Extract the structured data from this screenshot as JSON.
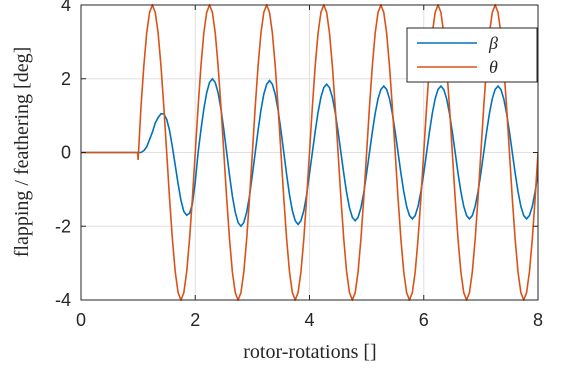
{
  "chart_data": {
    "type": "line",
    "xlabel": "rotor-rotations []",
    "ylabel": "flapping / feathering [deg]",
    "xlim": [
      0,
      8
    ],
    "ylim": [
      -4,
      4
    ],
    "xticks": [
      0,
      2,
      4,
      6,
      8
    ],
    "yticks": [
      -4,
      -2,
      0,
      2,
      4
    ],
    "grid": true,
    "legend": "upper right",
    "x": [
      0,
      0.99,
      1,
      1.05,
      1.1,
      1.15,
      1.2,
      1.25,
      1.3,
      1.35,
      1.4,
      1.45,
      1.5,
      1.55,
      1.6,
      1.65,
      1.7,
      1.75,
      1.8,
      1.85,
      1.9,
      1.95,
      2,
      2.05,
      2.1,
      2.15,
      2.2,
      2.25,
      2.3,
      2.35,
      2.4,
      2.45,
      2.5,
      2.55,
      2.6,
      2.65,
      2.7,
      2.75,
      2.8,
      2.85,
      2.9,
      2.95,
      3,
      3.05,
      3.1,
      3.15,
      3.2,
      3.25,
      3.3,
      3.35,
      3.4,
      3.45,
      3.5,
      3.55,
      3.6,
      3.65,
      3.7,
      3.75,
      3.8,
      3.85,
      3.9,
      3.95,
      4,
      4.05,
      4.1,
      4.15,
      4.2,
      4.25,
      4.3,
      4.35,
      4.4,
      4.45,
      4.5,
      4.55,
      4.6,
      4.65,
      4.7,
      4.75,
      4.8,
      4.85,
      4.9,
      4.95,
      5,
      5.05,
      5.1,
      5.15,
      5.2,
      5.25,
      5.3,
      5.35,
      5.4,
      5.45,
      5.5,
      5.55,
      5.6,
      5.65,
      5.7,
      5.75,
      5.8,
      5.85,
      5.9,
      5.95,
      6,
      6.05,
      6.1,
      6.15,
      6.2,
      6.25,
      6.3,
      6.35,
      6.4,
      6.45,
      6.5,
      6.55,
      6.6,
      6.65,
      6.7,
      6.75,
      6.8,
      6.85,
      6.9,
      6.95,
      7,
      7.05,
      7.1,
      7.15,
      7.2,
      7.25,
      7.3,
      7.35,
      7.4,
      7.45,
      7.5,
      7.55,
      7.6,
      7.65,
      7.7,
      7.75,
      7.8,
      7.85,
      7.9,
      7.95,
      8
    ],
    "series": [
      {
        "name": "β",
        "color": "#0072bd",
        "values": [
          0,
          0,
          0,
          0,
          0.05,
          0.15,
          0.35,
          0.55,
          0.8,
          0.95,
          1.05,
          1.05,
          0.9,
          0.6,
          0.15,
          -0.35,
          -0.85,
          -1.3,
          -1.6,
          -1.7,
          -1.65,
          -1.4,
          -0.8,
          0,
          0.62,
          1.18,
          1.62,
          1.9,
          2,
          1.9,
          1.62,
          1.18,
          0.62,
          0,
          -0.62,
          -1.18,
          -1.62,
          -1.9,
          -2,
          -1.9,
          -1.62,
          -1.18,
          -0.6,
          0,
          0.6,
          1.15,
          1.58,
          1.85,
          1.95,
          1.85,
          1.58,
          1.15,
          0.6,
          0,
          -0.6,
          -1.15,
          -1.58,
          -1.85,
          -1.95,
          -1.85,
          -1.58,
          -1.15,
          -0.57,
          0,
          0.57,
          1.09,
          1.5,
          1.76,
          1.85,
          1.76,
          1.5,
          1.09,
          0.57,
          0,
          -0.57,
          -1.09,
          -1.5,
          -1.76,
          -1.85,
          -1.76,
          -1.5,
          -1.09,
          -0.56,
          0,
          0.56,
          1.06,
          1.46,
          1.71,
          1.8,
          1.71,
          1.46,
          1.06,
          0.56,
          0,
          -0.56,
          -1.06,
          -1.46,
          -1.71,
          -1.8,
          -1.71,
          -1.46,
          -1.06,
          -0.56,
          0,
          0.56,
          1.06,
          1.46,
          1.71,
          1.8,
          1.71,
          1.46,
          1.06,
          0.56,
          0,
          -0.56,
          -1.06,
          -1.46,
          -1.71,
          -1.8,
          -1.71,
          -1.46,
          -1.06,
          -0.56,
          0,
          0.56,
          1.06,
          1.46,
          1.71,
          1.8,
          1.71,
          1.46,
          1.06,
          0.56,
          0,
          -0.56,
          -1.06,
          -1.46,
          -1.71,
          -1.8,
          -1.71,
          -1.46,
          -1.06,
          -0.56
        ]
      },
      {
        "name": "θ",
        "color": "#d95319",
        "values": [
          0,
          0,
          -0.2,
          1.24,
          2.35,
          3.24,
          3.8,
          4,
          3.8,
          3.24,
          2.35,
          1.24,
          0,
          -1.24,
          -2.35,
          -3.24,
          -3.8,
          -4,
          -3.8,
          -3.24,
          -2.35,
          -1.24,
          0,
          1.24,
          2.35,
          3.24,
          3.8,
          4,
          3.8,
          3.24,
          2.35,
          1.24,
          0,
          -1.24,
          -2.35,
          -3.24,
          -3.8,
          -4,
          -3.8,
          -3.24,
          -2.35,
          -1.24,
          0,
          1.24,
          2.35,
          3.24,
          3.8,
          4,
          3.8,
          3.24,
          2.35,
          1.24,
          0,
          -1.24,
          -2.35,
          -3.24,
          -3.8,
          -4,
          -3.8,
          -3.24,
          -2.35,
          -1.24,
          0,
          1.24,
          2.35,
          3.24,
          3.8,
          4,
          3.8,
          3.24,
          2.35,
          1.24,
          0,
          -1.24,
          -2.35,
          -3.24,
          -3.8,
          -4,
          -3.8,
          -3.24,
          -2.35,
          -1.24,
          0,
          1.24,
          2.35,
          3.24,
          3.8,
          4,
          3.8,
          3.24,
          2.35,
          1.24,
          0,
          -1.24,
          -2.35,
          -3.24,
          -3.8,
          -4,
          -3.8,
          -3.24,
          -2.35,
          -1.24,
          0,
          1.24,
          2.35,
          3.24,
          3.8,
          4,
          3.8,
          3.24,
          2.35,
          1.24,
          0,
          -1.24,
          -2.35,
          -3.24,
          -3.8,
          -4,
          -3.8,
          -3.24,
          -2.35,
          -1.24,
          0,
          1.24,
          2.35,
          3.24,
          3.8,
          4,
          3.8,
          3.24,
          2.35,
          1.24,
          0,
          -1.24,
          -2.35,
          -3.24,
          -3.8,
          -4,
          -3.8,
          -3.24,
          -2.35,
          -1.24,
          0
        ]
      }
    ]
  }
}
